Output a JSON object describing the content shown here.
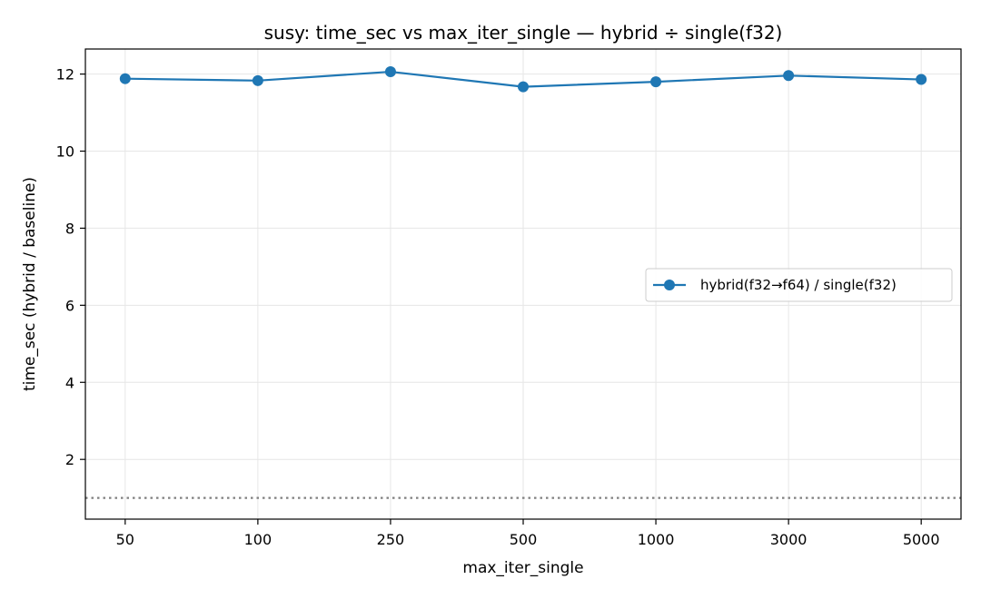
{
  "chart_data": {
    "type": "line",
    "title": "susy: time_sec vs max_iter_single — hybrid ÷ single(f32)",
    "xlabel": "max_iter_single",
    "ylabel": "time_sec (hybrid / baseline)",
    "categories": [
      "50",
      "100",
      "250",
      "500",
      "1000",
      "3000",
      "5000"
    ],
    "series": [
      {
        "name": "hybrid(f32→f64) / single(f32)",
        "color": "#1f77b4",
        "marker": "circle",
        "values": [
          11.88,
          11.83,
          12.06,
          11.67,
          11.8,
          11.96,
          11.86
        ]
      }
    ],
    "ylim": [
      0.45,
      12.65
    ],
    "yticks": [
      2,
      4,
      6,
      8,
      10,
      12
    ],
    "reference_line": {
      "y": 1.0,
      "style": "dotted",
      "color": "#808080"
    },
    "grid": true,
    "legend_position": "center-right"
  }
}
